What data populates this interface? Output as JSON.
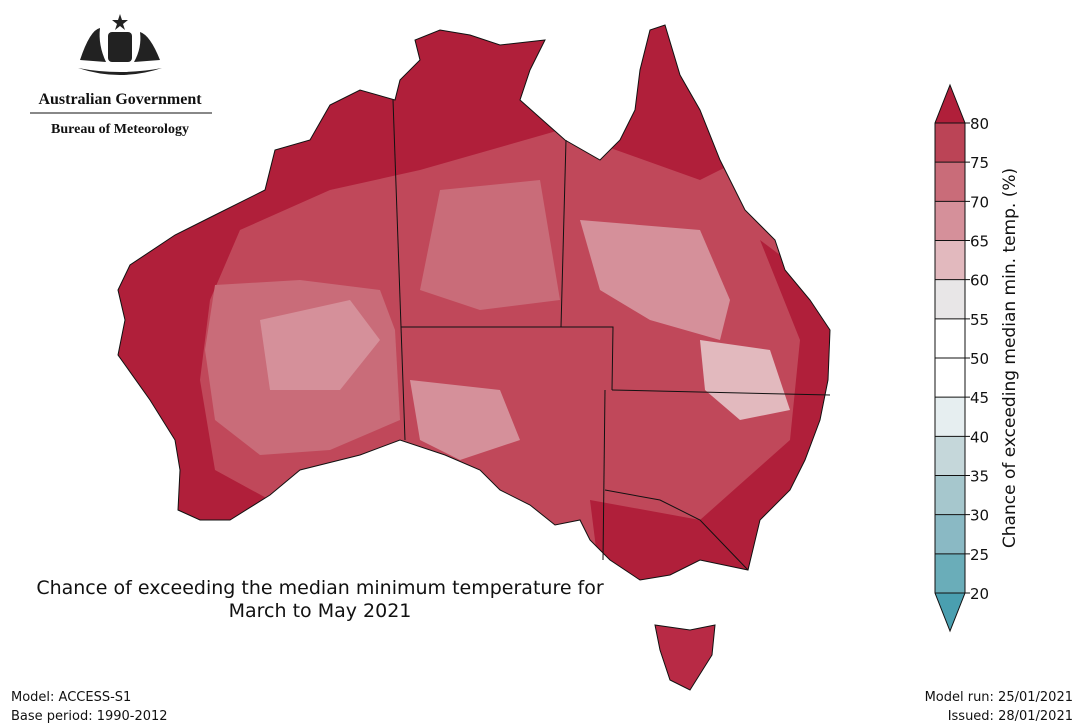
{
  "header": {
    "government": "Australian Government",
    "agency": "Bureau of Meteorology"
  },
  "title": {
    "line1": "Chance of exceeding the median minimum temperature for",
    "line2": "March to May 2021"
  },
  "colorbar": {
    "label": "Chance of exceeding median min. temp. (%)",
    "ticks": [
      20,
      25,
      30,
      35,
      40,
      45,
      50,
      55,
      60,
      65,
      70,
      75,
      80
    ],
    "colors": [
      "#6aadb9",
      "#8ab9c4",
      "#a6c7cd",
      "#c5d7da",
      "#e6eef0",
      "#ffffff",
      "#ffffff",
      "#e8e6e7",
      "#e2b9be",
      "#d5909a",
      "#c96c79",
      "#bb4456"
    ],
    "under_color": "#4a9fb0",
    "over_color": "#b01f3a"
  },
  "footer": {
    "model": "Model: ACCESS-S1",
    "base_period": "Base period: 1990-2012",
    "model_run": "Model run: 25/01/2021",
    "issued": "Issued: 28/01/2021"
  }
}
